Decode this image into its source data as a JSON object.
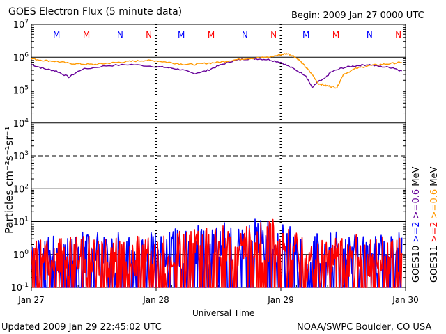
{
  "chart_data": {
    "type": "line",
    "title": "GOES Electron Flux (5 minute data)",
    "begin_label": "Begin: 2009 Jan 27 0000 UTC",
    "xlabel": "Universal Time",
    "ylabel": "Particles cm⁻²s⁻¹sr⁻¹",
    "yscale": "log",
    "ylim": [
      0.1,
      10000000
    ],
    "yticks": [
      {
        "value": 10000000,
        "base": "10",
        "exp": "7"
      },
      {
        "value": 1000000,
        "base": "10",
        "exp": "6"
      },
      {
        "value": 100000,
        "base": "10",
        "exp": "5"
      },
      {
        "value": 10000,
        "base": "10",
        "exp": "4"
      },
      {
        "value": 1000,
        "base": "10",
        "exp": "3"
      },
      {
        "value": 100,
        "base": "10",
        "exp": "2"
      },
      {
        "value": 10,
        "base": "10",
        "exp": "1"
      },
      {
        "value": 1,
        "base": "10",
        "exp": "0"
      },
      {
        "value": 0.1,
        "base": "10",
        "exp": "-1"
      }
    ],
    "xlim_days": [
      0,
      3
    ],
    "xticks": [
      {
        "day": 0,
        "label": "Jan 27"
      },
      {
        "day": 1,
        "label": "Jan 28"
      },
      {
        "day": 2,
        "label": "Jan 29"
      },
      {
        "day": 3,
        "label": "Jan 30"
      }
    ],
    "markers": [
      {
        "day": 0.28,
        "label": "M",
        "color": "#0000ff"
      },
      {
        "day": 0.52,
        "label": "M",
        "color": "#ff0000"
      },
      {
        "day": 0.79,
        "label": "N",
        "color": "#0000ff"
      },
      {
        "day": 1.02,
        "label": "N",
        "color": "#ff0000"
      },
      {
        "day": 1.28,
        "label": "M",
        "color": "#0000ff"
      },
      {
        "day": 1.52,
        "label": "M",
        "color": "#ff0000"
      },
      {
        "day": 1.79,
        "label": "N",
        "color": "#0000ff"
      },
      {
        "day": 2.02,
        "label": "N",
        "color": "#ff0000"
      },
      {
        "day": 2.28,
        "label": "M",
        "color": "#0000ff"
      },
      {
        "day": 2.52,
        "label": "M",
        "color": "#ff0000"
      },
      {
        "day": 2.79,
        "label": "N",
        "color": "#0000ff"
      },
      {
        "day": 3.02,
        "label": "N",
        "color": "#ff0000"
      }
    ],
    "series": [
      {
        "name": "GOES10 >=0.6 MeV",
        "color": "#660099",
        "kind": "line",
        "points": [
          [
            0.0,
            600000
          ],
          [
            0.1,
            450000
          ],
          [
            0.2,
            380000
          ],
          [
            0.3,
            250000
          ],
          [
            0.4,
            420000
          ],
          [
            0.6,
            550000
          ],
          [
            0.8,
            600000
          ],
          [
            1.0,
            520000
          ],
          [
            1.1,
            480000
          ],
          [
            1.2,
            420000
          ],
          [
            1.3,
            320000
          ],
          [
            1.4,
            380000
          ],
          [
            1.5,
            550000
          ],
          [
            1.6,
            750000
          ],
          [
            1.7,
            880000
          ],
          [
            1.8,
            900000
          ],
          [
            1.9,
            850000
          ],
          [
            2.0,
            700000
          ],
          [
            2.1,
            450000
          ],
          [
            2.2,
            280000
          ],
          [
            2.25,
            120000
          ],
          [
            2.3,
            180000
          ],
          [
            2.35,
            220000
          ],
          [
            2.4,
            350000
          ],
          [
            2.5,
            480000
          ],
          [
            2.6,
            550000
          ],
          [
            2.7,
            600000
          ],
          [
            2.8,
            520000
          ],
          [
            2.9,
            480000
          ],
          [
            2.97,
            380000
          ]
        ]
      },
      {
        "name": "GOES11 >=0.6 MeV",
        "color": "#ff9900",
        "kind": "line",
        "points": [
          [
            0.0,
            900000
          ],
          [
            0.1,
            800000
          ],
          [
            0.2,
            750000
          ],
          [
            0.3,
            650000
          ],
          [
            0.4,
            620000
          ],
          [
            0.5,
            600000
          ],
          [
            0.6,
            650000
          ],
          [
            0.7,
            700000
          ],
          [
            0.8,
            750000
          ],
          [
            0.9,
            800000
          ],
          [
            1.0,
            780000
          ],
          [
            1.1,
            700000
          ],
          [
            1.2,
            620000
          ],
          [
            1.3,
            600000
          ],
          [
            1.4,
            650000
          ],
          [
            1.5,
            700000
          ],
          [
            1.6,
            800000
          ],
          [
            1.7,
            900000
          ],
          [
            1.8,
            950000
          ],
          [
            1.9,
            1000000
          ],
          [
            2.0,
            1200000
          ],
          [
            2.05,
            1300000
          ],
          [
            2.1,
            1100000
          ],
          [
            2.15,
            800000
          ],
          [
            2.2,
            500000
          ],
          [
            2.25,
            300000
          ],
          [
            2.3,
            160000
          ],
          [
            2.35,
            140000
          ],
          [
            2.4,
            130000
          ],
          [
            2.45,
            120000
          ],
          [
            2.5,
            300000
          ],
          [
            2.6,
            450000
          ],
          [
            2.7,
            550000
          ],
          [
            2.8,
            600000
          ],
          [
            2.9,
            650000
          ],
          [
            2.97,
            700000
          ]
        ]
      },
      {
        "name": "GOES10 >=2 MeV",
        "color": "#0000ff",
        "kind": "noisy",
        "envelope": [
          [
            0.0,
            4
          ],
          [
            0.5,
            5
          ],
          [
            1.0,
            5
          ],
          [
            1.5,
            9
          ],
          [
            1.8,
            12
          ],
          [
            2.0,
            9
          ],
          [
            2.2,
            4
          ],
          [
            2.5,
            5
          ],
          [
            3.0,
            5
          ]
        ]
      },
      {
        "name": "GOES11 >=2 MeV",
        "color": "#ff0000",
        "kind": "noisy",
        "envelope": [
          [
            0.0,
            3
          ],
          [
            0.5,
            4
          ],
          [
            1.0,
            4
          ],
          [
            1.5,
            7
          ],
          [
            1.8,
            10
          ],
          [
            2.0,
            13
          ],
          [
            2.2,
            3
          ],
          [
            2.5,
            4
          ],
          [
            3.0,
            4
          ]
        ]
      }
    ],
    "legend": {
      "right_labels": [
        {
          "text": "GOES10",
          "color": "#000000"
        },
        {
          "text": ">=2",
          "color": "#0000ff"
        },
        {
          "text": ">=0.6",
          "color": "#660099"
        },
        {
          "text": "MeV",
          "color": "#000000"
        },
        {
          "text": "GOES11",
          "color": "#000000"
        },
        {
          "text": ">=2",
          "color": "#ff0000"
        },
        {
          "text": ">=0.6",
          "color": "#ff9900"
        },
        {
          "text": "MeV",
          "color": "#000000"
        }
      ]
    },
    "footer_left": "Updated 2009 Jan 29 22:45:02 UTC",
    "footer_right": "NOAA/SWPC Boulder, CO USA"
  }
}
